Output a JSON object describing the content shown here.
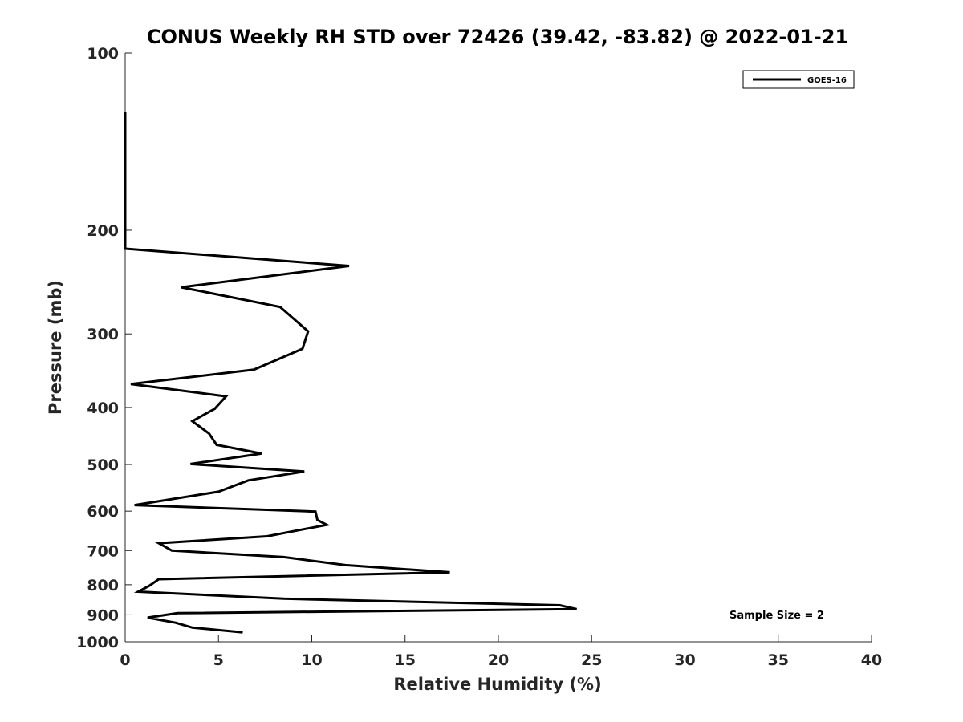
{
  "chart_data": {
    "type": "line",
    "title": "CONUS Weekly RH STD over 72426 (39.42, -83.82) @ 2022-01-21",
    "xlabel": "Relative Humidity (%)",
    "ylabel": "Pressure (mb)",
    "xlim": [
      0,
      40
    ],
    "ylim": [
      100,
      1000
    ],
    "y_scale": "log",
    "y_reversed": true,
    "x_ticks": [
      0,
      5,
      10,
      15,
      20,
      25,
      30,
      35,
      40
    ],
    "y_ticks": [
      100,
      200,
      300,
      400,
      500,
      600,
      700,
      800,
      900,
      1000
    ],
    "legend_position": "top-right",
    "grid": false,
    "annotation": "Sample Size = 2",
    "series": [
      {
        "name": "GOES-16",
        "color": "#000000",
        "points": [
          [
            0,
            126
          ],
          [
            0,
            200
          ],
          [
            0,
            215
          ],
          [
            12.0,
            230
          ],
          [
            3.0,
            250
          ],
          [
            8.3,
            270
          ],
          [
            9.8,
            297
          ],
          [
            9.5,
            318
          ],
          [
            6.9,
            345
          ],
          [
            0.3,
            365
          ],
          [
            5.4,
            383
          ],
          [
            4.8,
            402
          ],
          [
            3.6,
            422
          ],
          [
            4.5,
            443
          ],
          [
            4.9,
            463
          ],
          [
            7.3,
            479
          ],
          [
            3.5,
            499
          ],
          [
            9.6,
            514
          ],
          [
            6.6,
            532
          ],
          [
            5.0,
            556
          ],
          [
            0.5,
            586
          ],
          [
            10.2,
            601
          ],
          [
            10.3,
            621
          ],
          [
            10.8,
            633
          ],
          [
            7.6,
            662
          ],
          [
            1.8,
            680
          ],
          [
            2.5,
            700
          ],
          [
            8.5,
            718
          ],
          [
            11.8,
            741
          ],
          [
            17.4,
            762
          ],
          [
            1.8,
            783
          ],
          [
            1.3,
            803
          ],
          [
            0.7,
            822
          ],
          [
            8.5,
            845
          ],
          [
            23.3,
            867
          ],
          [
            24.2,
            880
          ],
          [
            2.8,
            894
          ],
          [
            1.2,
            910
          ],
          [
            2.7,
            928
          ],
          [
            3.6,
            946
          ],
          [
            6.3,
            964
          ]
        ]
      }
    ]
  }
}
